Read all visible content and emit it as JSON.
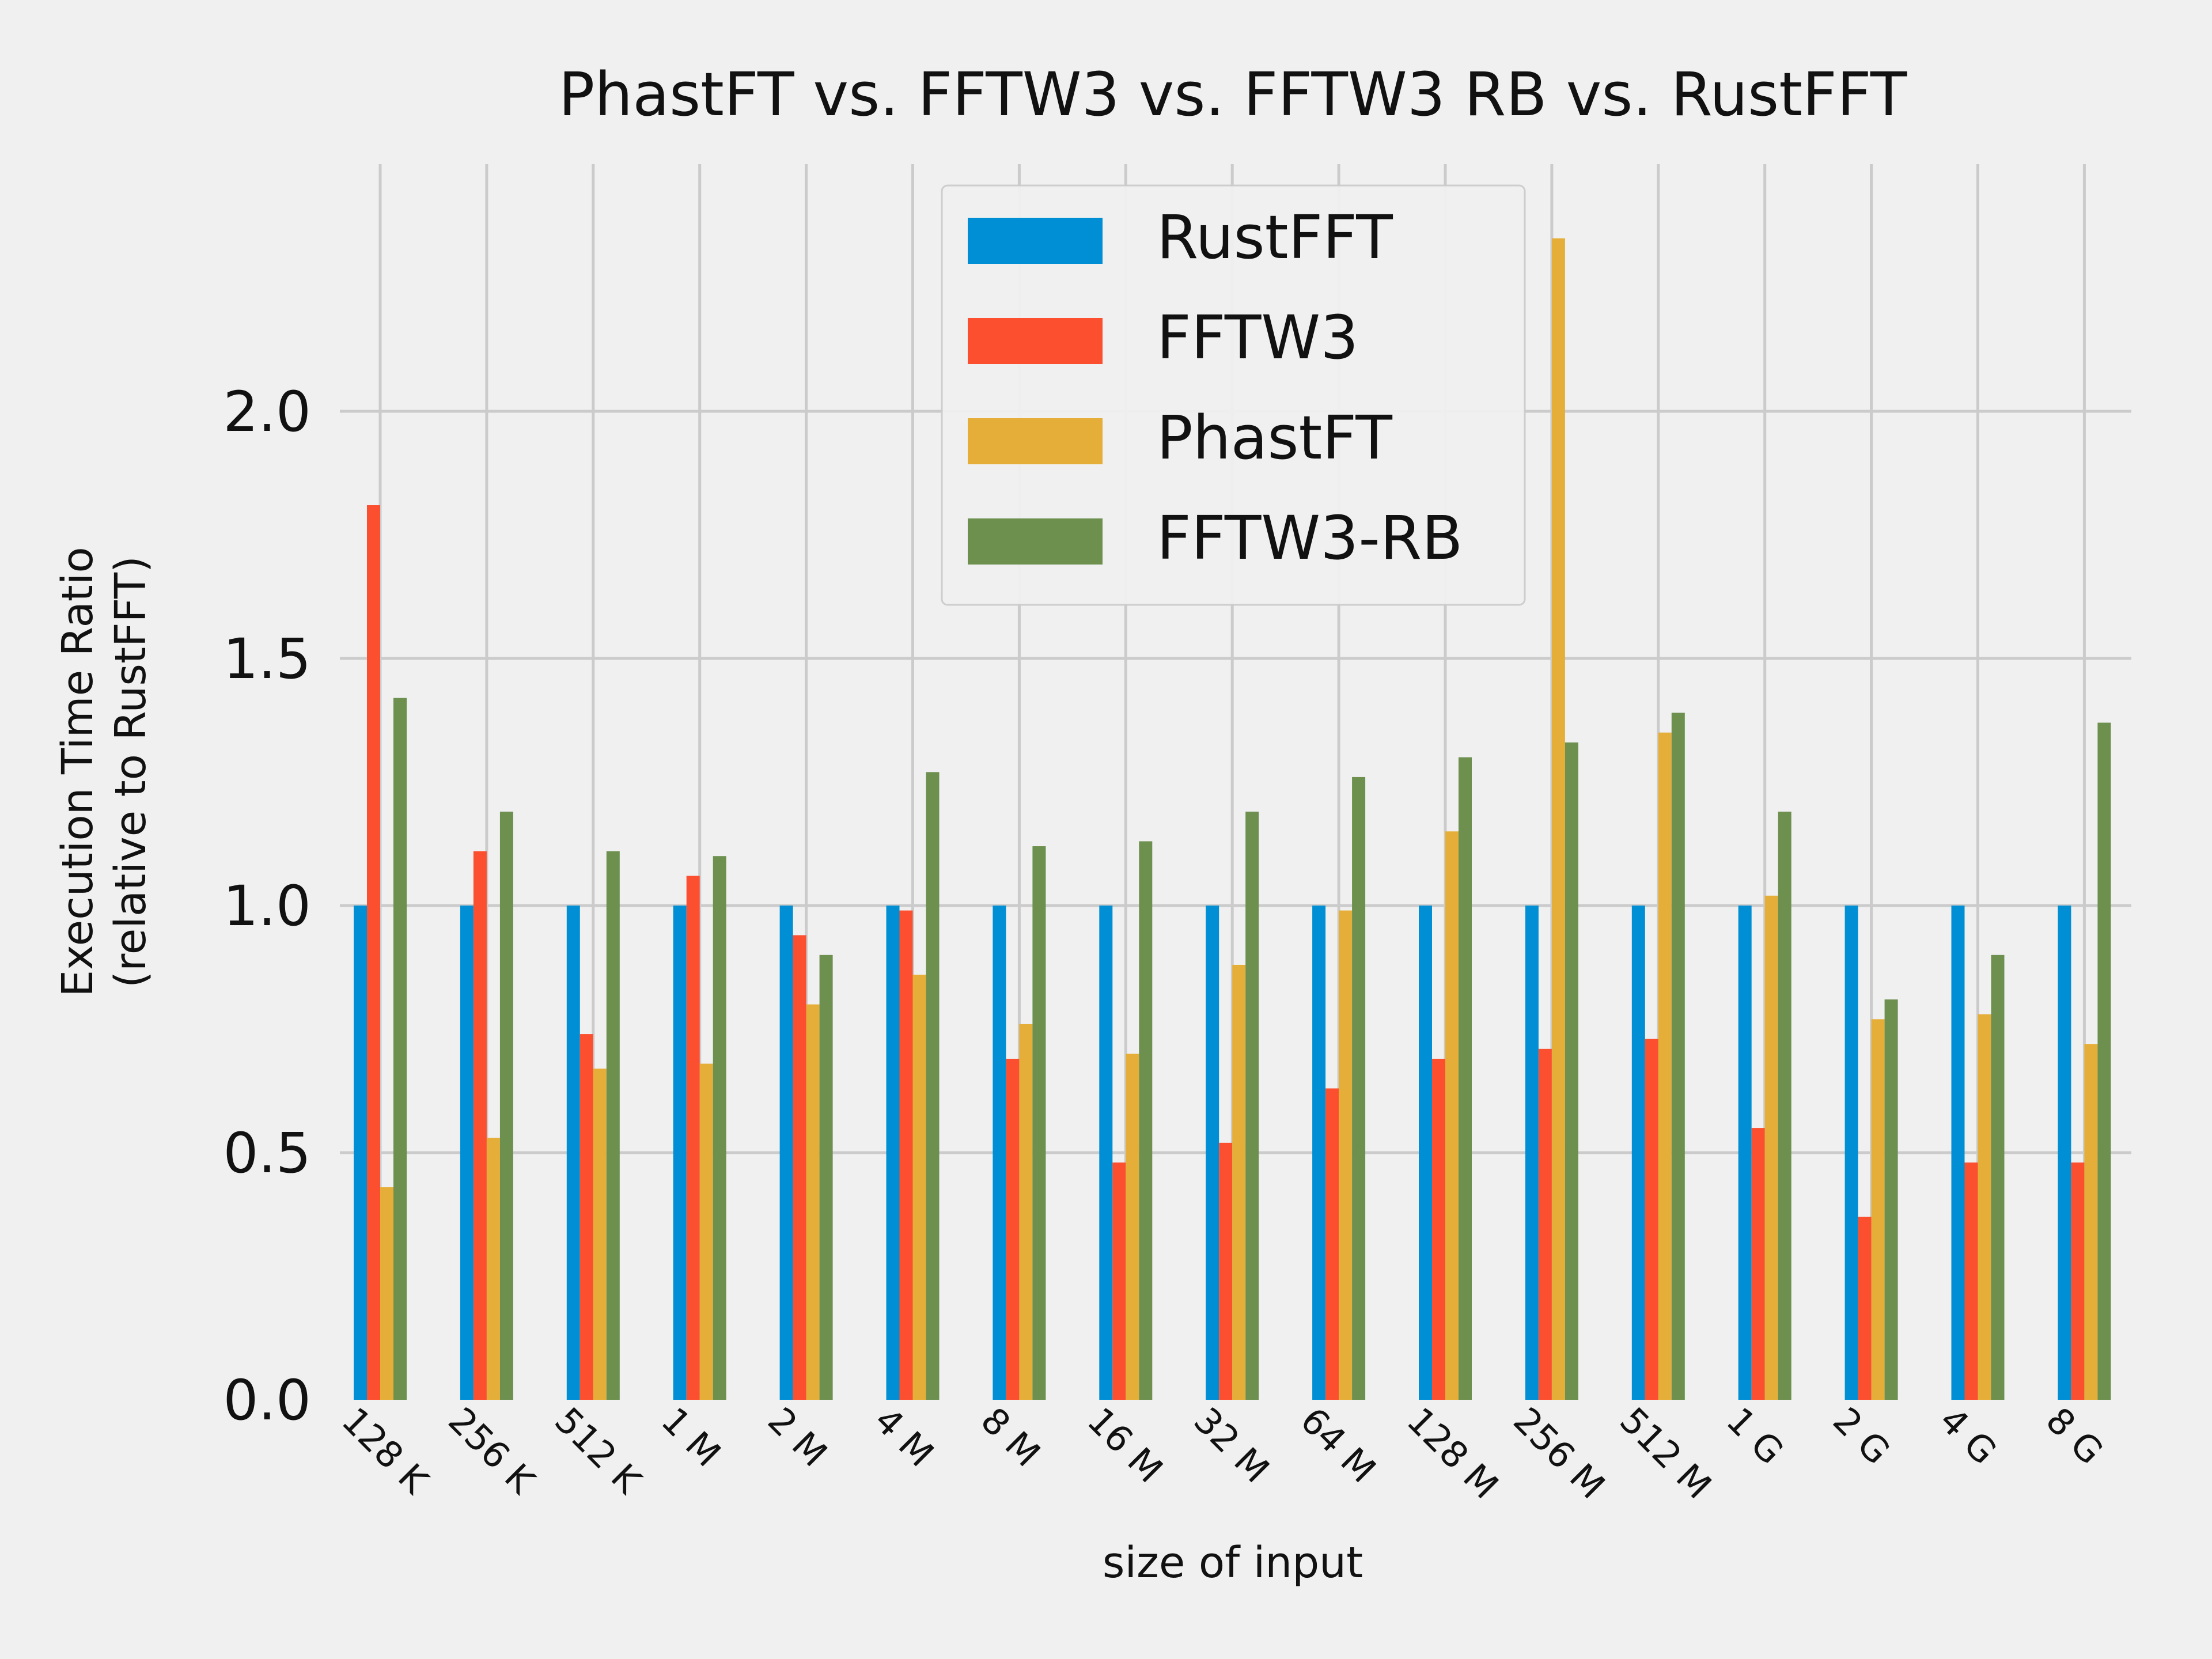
{
  "chart_data": {
    "type": "bar",
    "title": "PhastFT vs. FFTW3 vs. FFTW3 RB vs. RustFFT",
    "xlabel": "size of input",
    "ylabel_line1": "Execution Time Ratio",
    "ylabel_line2": "(relative to RustFFT)",
    "ylim": [
      0,
      2.5
    ],
    "yticks": [
      0.0,
      0.5,
      1.0,
      1.5,
      2.0
    ],
    "ytick_labels": [
      "0.0",
      "0.5",
      "1.0",
      "1.5",
      "2.0"
    ],
    "grid": true,
    "legend_position": "top-center",
    "categories": [
      "128 K",
      "256 K",
      "512 K",
      "1 M",
      "2 M",
      "4 M",
      "8 M",
      "16 M",
      "32 M",
      "64 M",
      "128 M",
      "256 M",
      "512 M",
      "1 G",
      "2 G",
      "4 G",
      "8 G"
    ],
    "series": [
      {
        "name": "RustFFT",
        "color": "#008fd5",
        "values": [
          1,
          1,
          1,
          1,
          1,
          1,
          1,
          1,
          1,
          1,
          1,
          1,
          1,
          1,
          1,
          1,
          1
        ]
      },
      {
        "name": "FFTW3",
        "color": "#fc4f30",
        "values": [
          1.81,
          1.11,
          0.74,
          1.06,
          0.94,
          0.99,
          0.69,
          0.48,
          0.52,
          0.63,
          0.69,
          0.71,
          0.73,
          0.55,
          0.37,
          0.48,
          0.48
        ]
      },
      {
        "name": "PhastFT",
        "color": "#e5ae38",
        "values": [
          0.43,
          0.53,
          0.67,
          0.68,
          0.8,
          0.86,
          0.76,
          0.7,
          0.88,
          0.99,
          1.15,
          2.35,
          1.35,
          1.02,
          0.77,
          0.78,
          0.72
        ]
      },
      {
        "name": "FFTW3-RB",
        "color": "#6d904f",
        "values": [
          1.42,
          1.19,
          1.11,
          1.1,
          0.9,
          1.27,
          1.12,
          1.13,
          1.19,
          1.26,
          1.3,
          1.33,
          1.39,
          1.19,
          0.81,
          0.9,
          1.37
        ]
      }
    ]
  }
}
